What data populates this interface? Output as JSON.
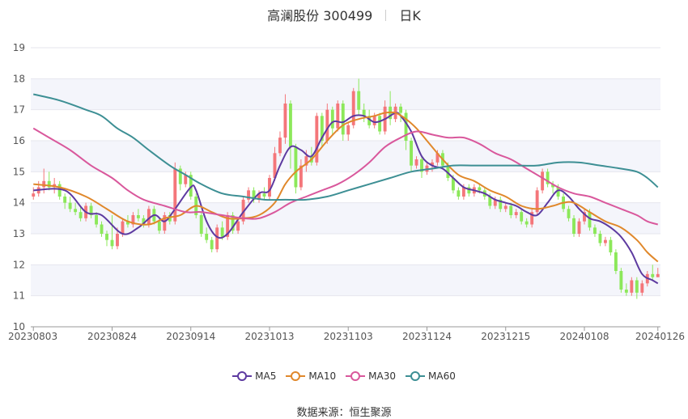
{
  "header": {
    "name": "高澜股份 300499",
    "period": "日K"
  },
  "source": {
    "label": "数据来源：",
    "value": "恒生聚源"
  },
  "chart_data": {
    "type": "candlestick",
    "ylim": [
      10,
      19
    ],
    "yticks": [
      10,
      11,
      12,
      13,
      14,
      15,
      16,
      17,
      18,
      19
    ],
    "xticks": [
      "20230803",
      "20230824",
      "20230914",
      "20231013",
      "20231103",
      "20231124",
      "20231215",
      "20240108",
      "20240126"
    ],
    "tick_positions": [
      0,
      15,
      30,
      45,
      60,
      75,
      90,
      105,
      119
    ],
    "colors": {
      "up": "#f4767a",
      "down": "#8ce85a"
    },
    "candles": [
      [
        14.2,
        14.3,
        14.5,
        14.1
      ],
      [
        14.3,
        14.5,
        14.7,
        14.2
      ],
      [
        14.5,
        14.7,
        15.1,
        14.3
      ],
      [
        14.7,
        14.5,
        15.0,
        14.4
      ],
      [
        14.5,
        14.6,
        14.8,
        14.3
      ],
      [
        14.6,
        14.2,
        14.7,
        14.1
      ],
      [
        14.2,
        14.0,
        14.3,
        13.8
      ],
      [
        14.0,
        13.8,
        14.2,
        13.7
      ],
      [
        13.8,
        13.7,
        14.0,
        13.6
      ],
      [
        13.7,
        13.5,
        13.9,
        13.4
      ],
      [
        13.5,
        13.9,
        14.0,
        13.4
      ],
      [
        13.9,
        13.6,
        14.0,
        13.5
      ],
      [
        13.6,
        13.3,
        13.7,
        13.2
      ],
      [
        13.3,
        13.0,
        13.4,
        12.9
      ],
      [
        13.0,
        12.8,
        13.1,
        12.6
      ],
      [
        12.8,
        12.6,
        13.6,
        12.5
      ],
      [
        12.6,
        13.0,
        13.2,
        12.5
      ],
      [
        13.0,
        13.4,
        13.5,
        12.9
      ],
      [
        13.4,
        13.3,
        13.6,
        13.2
      ],
      [
        13.3,
        13.6,
        13.7,
        13.2
      ],
      [
        13.6,
        13.5,
        13.8,
        13.4
      ],
      [
        13.5,
        13.3,
        13.6,
        13.2
      ],
      [
        13.3,
        13.8,
        13.9,
        13.2
      ],
      [
        13.8,
        13.4,
        13.9,
        13.3
      ],
      [
        13.4,
        13.1,
        13.5,
        13.0
      ],
      [
        13.1,
        13.6,
        13.7,
        13.0
      ],
      [
        13.6,
        13.4,
        13.7,
        13.3
      ],
      [
        13.4,
        15.1,
        15.3,
        13.3
      ],
      [
        15.1,
        14.6,
        15.2,
        14.4
      ],
      [
        14.6,
        14.9,
        15.0,
        14.5
      ],
      [
        14.9,
        14.2,
        15.0,
        14.1
      ],
      [
        14.2,
        13.6,
        14.3,
        13.5
      ],
      [
        13.6,
        13.0,
        13.7,
        12.9
      ],
      [
        13.0,
        12.8,
        13.2,
        12.7
      ],
      [
        12.8,
        12.5,
        12.9,
        12.4
      ],
      [
        12.5,
        13.2,
        13.3,
        12.4
      ],
      [
        13.2,
        12.9,
        13.4,
        12.8
      ],
      [
        12.9,
        13.6,
        13.7,
        12.8
      ],
      [
        13.6,
        13.1,
        13.7,
        13.0
      ],
      [
        13.1,
        13.4,
        13.5,
        13.0
      ],
      [
        13.4,
        14.1,
        14.2,
        13.3
      ],
      [
        14.1,
        14.4,
        14.5,
        14.0
      ],
      [
        14.4,
        14.1,
        14.5,
        14.0
      ],
      [
        14.1,
        14.3,
        14.4,
        14.0
      ],
      [
        14.3,
        14.2,
        14.5,
        14.1
      ],
      [
        14.2,
        14.8,
        14.9,
        14.1
      ],
      [
        14.8,
        15.6,
        15.8,
        14.7
      ],
      [
        15.6,
        16.1,
        16.3,
        15.5
      ],
      [
        16.1,
        17.2,
        17.5,
        15.9
      ],
      [
        17.2,
        15.8,
        17.3,
        15.1
      ],
      [
        15.8,
        14.5,
        15.9,
        14.3
      ],
      [
        14.5,
        15.2,
        15.4,
        14.4
      ],
      [
        15.2,
        15.5,
        15.7,
        15.0
      ],
      [
        15.5,
        15.3,
        15.8,
        15.2
      ],
      [
        15.3,
        16.8,
        16.9,
        15.2
      ],
      [
        16.8,
        16.0,
        16.9,
        15.8
      ],
      [
        16.0,
        17.0,
        17.2,
        15.9
      ],
      [
        17.0,
        16.4,
        17.1,
        16.2
      ],
      [
        16.4,
        17.2,
        17.3,
        16.3
      ],
      [
        17.2,
        16.2,
        17.3,
        16.0
      ],
      [
        16.2,
        16.5,
        16.6,
        16.0
      ],
      [
        16.5,
        17.6,
        17.7,
        16.4
      ],
      [
        17.6,
        17.0,
        18.0,
        16.8
      ],
      [
        17.0,
        16.8,
        17.2,
        16.6
      ],
      [
        16.8,
        16.5,
        17.0,
        16.4
      ],
      [
        16.5,
        16.8,
        16.9,
        16.4
      ],
      [
        16.8,
        16.3,
        16.9,
        16.2
      ],
      [
        16.3,
        17.1,
        17.3,
        16.2
      ],
      [
        17.1,
        16.7,
        17.6,
        16.5
      ],
      [
        16.7,
        17.1,
        17.2,
        16.6
      ],
      [
        17.1,
        16.9,
        17.2,
        16.6
      ],
      [
        16.9,
        16.0,
        17.0,
        15.7
      ],
      [
        16.0,
        15.2,
        16.1,
        15.0
      ],
      [
        15.2,
        15.4,
        15.5,
        15.1
      ],
      [
        15.4,
        15.0,
        15.5,
        14.8
      ],
      [
        15.0,
        15.2,
        15.3,
        14.9
      ],
      [
        15.2,
        15.3,
        15.4,
        15.0
      ],
      [
        15.3,
        15.6,
        15.7,
        15.2
      ],
      [
        15.6,
        15.2,
        15.7,
        15.1
      ],
      [
        15.2,
        14.8,
        15.3,
        14.7
      ],
      [
        14.8,
        14.4,
        14.9,
        14.3
      ],
      [
        14.4,
        14.2,
        14.5,
        14.1
      ],
      [
        14.2,
        14.5,
        14.6,
        14.1
      ],
      [
        14.5,
        14.3,
        14.6,
        14.2
      ],
      [
        14.3,
        14.5,
        14.6,
        14.2
      ],
      [
        14.5,
        14.4,
        14.6,
        14.3
      ],
      [
        14.4,
        14.2,
        14.5,
        14.1
      ],
      [
        14.2,
        13.9,
        14.3,
        13.8
      ],
      [
        13.9,
        14.1,
        14.2,
        13.8
      ],
      [
        14.1,
        13.8,
        14.2,
        13.7
      ],
      [
        13.8,
        13.9,
        14.0,
        13.7
      ],
      [
        13.9,
        13.6,
        14.0,
        13.5
      ],
      [
        13.6,
        13.7,
        13.8,
        13.5
      ],
      [
        13.7,
        13.4,
        13.8,
        13.3
      ],
      [
        13.4,
        13.3,
        13.5,
        13.2
      ],
      [
        13.3,
        13.7,
        13.8,
        13.2
      ],
      [
        13.7,
        14.4,
        14.5,
        13.6
      ],
      [
        14.4,
        15.0,
        15.1,
        14.3
      ],
      [
        15.0,
        14.6,
        15.1,
        14.5
      ],
      [
        14.6,
        14.5,
        14.7,
        14.3
      ],
      [
        14.5,
        14.2,
        14.6,
        14.1
      ],
      [
        14.2,
        13.8,
        14.3,
        13.7
      ],
      [
        13.8,
        13.5,
        13.9,
        13.4
      ],
      [
        13.5,
        13.0,
        13.6,
        12.9
      ],
      [
        13.0,
        13.4,
        13.5,
        12.9
      ],
      [
        13.4,
        13.7,
        13.8,
        13.3
      ],
      [
        13.7,
        13.2,
        13.8,
        13.1
      ],
      [
        13.2,
        13.0,
        13.3,
        12.9
      ],
      [
        13.0,
        12.7,
        13.1,
        12.6
      ],
      [
        12.7,
        12.8,
        12.9,
        12.6
      ],
      [
        12.8,
        12.4,
        12.9,
        12.3
      ],
      [
        12.4,
        11.8,
        12.5,
        11.7
      ],
      [
        11.8,
        11.2,
        11.9,
        11.1
      ],
      [
        11.2,
        11.1,
        11.4,
        11.0
      ],
      [
        11.1,
        11.5,
        11.6,
        11.0
      ],
      [
        11.5,
        11.1,
        11.6,
        10.9
      ],
      [
        11.1,
        11.4,
        11.5,
        11.0
      ],
      [
        11.4,
        11.7,
        11.8,
        11.3
      ],
      [
        11.7,
        11.6,
        12.0,
        11.5
      ],
      [
        11.6,
        11.7,
        11.9,
        11.6
      ]
    ],
    "series": [
      {
        "name": "MA5",
        "color": "#5d3aa0",
        "points": [
          [
            0,
            14.4
          ],
          [
            6,
            14.4
          ],
          [
            10,
            13.7
          ],
          [
            13,
            13.6
          ],
          [
            17,
            13.0
          ],
          [
            20,
            13.2
          ],
          [
            23,
            13.6
          ],
          [
            25,
            13.4
          ],
          [
            27,
            13.8
          ],
          [
            30,
            14.5
          ],
          [
            31,
            14.4
          ],
          [
            33,
            13.4
          ],
          [
            35,
            12.9
          ],
          [
            37,
            13.0
          ],
          [
            40,
            13.7
          ],
          [
            43,
            14.3
          ],
          [
            45,
            14.4
          ],
          [
            47,
            15.2
          ],
          [
            49,
            15.8
          ],
          [
            51,
            15.7
          ],
          [
            53,
            15.5
          ],
          [
            55,
            16.1
          ],
          [
            57,
            16.6
          ],
          [
            59,
            16.6
          ],
          [
            61,
            16.8
          ],
          [
            63,
            16.8
          ],
          [
            65,
            16.6
          ],
          [
            67,
            16.7
          ],
          [
            69,
            16.9
          ],
          [
            70,
            16.8
          ],
          [
            72,
            16.3
          ],
          [
            74,
            15.5
          ],
          [
            76,
            15.2
          ],
          [
            78,
            15.1
          ],
          [
            80,
            14.8
          ],
          [
            82,
            14.5
          ],
          [
            84,
            14.4
          ],
          [
            86,
            14.3
          ],
          [
            88,
            14.1
          ],
          [
            90,
            14.0
          ],
          [
            92,
            13.9
          ],
          [
            94,
            13.7
          ],
          [
            96,
            13.6
          ],
          [
            98,
            14.0
          ],
          [
            100,
            14.4
          ],
          [
            102,
            14.2
          ],
          [
            104,
            13.8
          ],
          [
            106,
            13.5
          ],
          [
            108,
            13.4
          ],
          [
            110,
            13.2
          ],
          [
            112,
            12.9
          ],
          [
            114,
            12.4
          ],
          [
            116,
            11.7
          ],
          [
            118,
            11.5
          ],
          [
            119,
            11.4
          ]
        ]
      },
      {
        "name": "MA10",
        "color": "#e0882b",
        "points": [
          [
            0,
            14.6
          ],
          [
            5,
            14.5
          ],
          [
            10,
            14.2
          ],
          [
            14,
            13.8
          ],
          [
            18,
            13.4
          ],
          [
            22,
            13.3
          ],
          [
            25,
            13.5
          ],
          [
            28,
            13.6
          ],
          [
            31,
            13.9
          ],
          [
            34,
            13.7
          ],
          [
            37,
            13.5
          ],
          [
            40,
            13.5
          ],
          [
            43,
            13.6
          ],
          [
            46,
            14.0
          ],
          [
            48,
            14.6
          ],
          [
            50,
            15.0
          ],
          [
            53,
            15.4
          ],
          [
            56,
            16.0
          ],
          [
            59,
            16.5
          ],
          [
            62,
            16.7
          ],
          [
            65,
            16.8
          ],
          [
            67,
            16.9
          ],
          [
            69,
            16.9
          ],
          [
            71,
            16.7
          ],
          [
            73,
            16.4
          ],
          [
            75,
            16.0
          ],
          [
            78,
            15.4
          ],
          [
            81,
            14.9
          ],
          [
            84,
            14.7
          ],
          [
            87,
            14.4
          ],
          [
            90,
            14.2
          ],
          [
            93,
            13.9
          ],
          [
            96,
            13.8
          ],
          [
            99,
            13.9
          ],
          [
            101,
            14.0
          ],
          [
            103,
            14.0
          ],
          [
            106,
            13.7
          ],
          [
            109,
            13.4
          ],
          [
            112,
            13.2
          ],
          [
            115,
            12.8
          ],
          [
            117,
            12.4
          ],
          [
            119,
            12.1
          ]
        ]
      },
      {
        "name": "MA30",
        "color": "#d9589c",
        "points": [
          [
            0,
            16.4
          ],
          [
            3,
            16.1
          ],
          [
            7,
            15.7
          ],
          [
            11,
            15.2
          ],
          [
            15,
            14.8
          ],
          [
            18,
            14.4
          ],
          [
            21,
            14.1
          ],
          [
            25,
            13.9
          ],
          [
            29,
            13.7
          ],
          [
            32,
            13.7
          ],
          [
            36,
            13.6
          ],
          [
            40,
            13.5
          ],
          [
            43,
            13.5
          ],
          [
            46,
            13.7
          ],
          [
            49,
            14.0
          ],
          [
            52,
            14.2
          ],
          [
            55,
            14.4
          ],
          [
            58,
            14.6
          ],
          [
            61,
            14.9
          ],
          [
            64,
            15.3
          ],
          [
            67,
            15.8
          ],
          [
            70,
            16.1
          ],
          [
            73,
            16.3
          ],
          [
            76,
            16.2
          ],
          [
            79,
            16.1
          ],
          [
            82,
            16.1
          ],
          [
            85,
            15.9
          ],
          [
            88,
            15.6
          ],
          [
            91,
            15.4
          ],
          [
            94,
            15.1
          ],
          [
            97,
            14.8
          ],
          [
            100,
            14.5
          ],
          [
            103,
            14.3
          ],
          [
            106,
            14.2
          ],
          [
            109,
            14.0
          ],
          [
            112,
            13.8
          ],
          [
            115,
            13.6
          ],
          [
            117,
            13.4
          ],
          [
            119,
            13.3
          ]
        ]
      },
      {
        "name": "MA60",
        "color": "#3d8f94",
        "points": [
          [
            0,
            17.5
          ],
          [
            5,
            17.3
          ],
          [
            10,
            17.0
          ],
          [
            13,
            16.8
          ],
          [
            16,
            16.4
          ],
          [
            19,
            16.1
          ],
          [
            22,
            15.7
          ],
          [
            26,
            15.2
          ],
          [
            29,
            14.9
          ],
          [
            32,
            14.6
          ],
          [
            36,
            14.3
          ],
          [
            40,
            14.2
          ],
          [
            44,
            14.1
          ],
          [
            48,
            14.1
          ],
          [
            52,
            14.1
          ],
          [
            56,
            14.2
          ],
          [
            60,
            14.4
          ],
          [
            64,
            14.6
          ],
          [
            68,
            14.8
          ],
          [
            72,
            15.0
          ],
          [
            76,
            15.1
          ],
          [
            80,
            15.2
          ],
          [
            84,
            15.2
          ],
          [
            88,
            15.2
          ],
          [
            92,
            15.2
          ],
          [
            96,
            15.2
          ],
          [
            100,
            15.3
          ],
          [
            104,
            15.3
          ],
          [
            108,
            15.2
          ],
          [
            112,
            15.1
          ],
          [
            115,
            15.0
          ],
          [
            117,
            14.8
          ],
          [
            119,
            14.5
          ]
        ]
      }
    ]
  }
}
